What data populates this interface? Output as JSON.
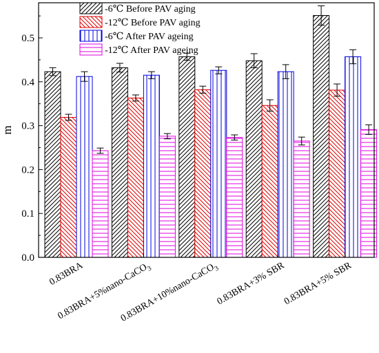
{
  "chart_data": {
    "type": "bar",
    "title": "",
    "xlabel": "",
    "ylabel": "m",
    "ylim": [
      0.0,
      0.58
    ],
    "yticks": [
      "0.0",
      "0.1",
      "0.2",
      "0.3",
      "0.4",
      "0.5"
    ],
    "grid": false,
    "legend_position": "top-left",
    "categories": [
      {
        "main": "0.83BRA",
        "sub": ""
      },
      {
        "main": "0.83BRA+5%nano-CaCO",
        "sub": "3"
      },
      {
        "main": "0.83BRA+10%nano-CaCO",
        "sub": "3"
      },
      {
        "main": "0.83BRA+3% SBR",
        "sub": ""
      },
      {
        "main": "0.83BRA+5% SBR",
        "sub": ""
      }
    ],
    "series": [
      {
        "name": "-6℃ Before PAV aging",
        "color": "#000000",
        "pattern": "diag-up",
        "values": [
          0.423,
          0.432,
          0.457,
          0.448,
          0.551
        ],
        "errors": [
          0.009,
          0.01,
          0.008,
          0.016,
          0.022
        ]
      },
      {
        "name": "-12℃ Before PAV aging",
        "color": "#e00000",
        "pattern": "diag-down",
        "values": [
          0.319,
          0.363,
          0.382,
          0.346,
          0.381
        ],
        "errors": [
          0.007,
          0.007,
          0.008,
          0.013,
          0.014
        ]
      },
      {
        "name": "-6℃  After PAV ageing",
        "color": "#0000e0",
        "pattern": "vertical",
        "values": [
          0.412,
          0.415,
          0.426,
          0.423,
          0.457
        ],
        "errors": [
          0.011,
          0.008,
          0.008,
          0.016,
          0.016
        ]
      },
      {
        "name": "-12℃ After PAV ageing",
        "color": "#e000e0",
        "pattern": "horizontal",
        "values": [
          0.243,
          0.276,
          0.273,
          0.265,
          0.291
        ],
        "errors": [
          0.006,
          0.006,
          0.006,
          0.009,
          0.011
        ]
      }
    ]
  }
}
